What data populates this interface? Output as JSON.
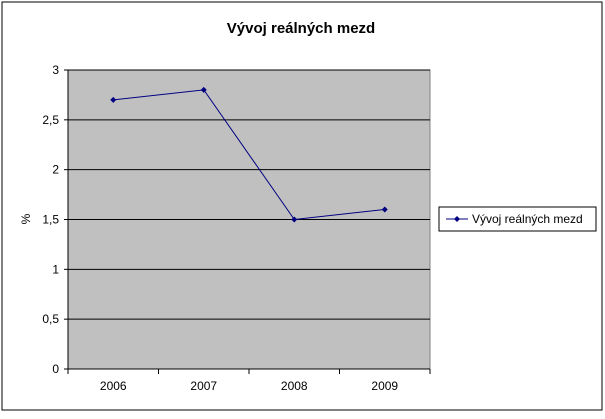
{
  "chart_data": {
    "type": "line",
    "title": "Vývoj reálných mezd",
    "xlabel": "",
    "ylabel": "%",
    "categories": [
      "2006",
      "2007",
      "2008",
      "2009"
    ],
    "series": [
      {
        "name": "Vývoj reálných mezd",
        "values": [
          2.7,
          2.8,
          1.5,
          1.6
        ]
      }
    ],
    "ylim": [
      0,
      3
    ],
    "yticks": [
      "0",
      "0,5",
      "1",
      "1,5",
      "2",
      "2,5",
      "3"
    ],
    "grid": true,
    "legend_position": "right",
    "colors": {
      "plot_background": "#c0c0c0",
      "series_line": "#000080",
      "gridline": "#000000"
    }
  }
}
